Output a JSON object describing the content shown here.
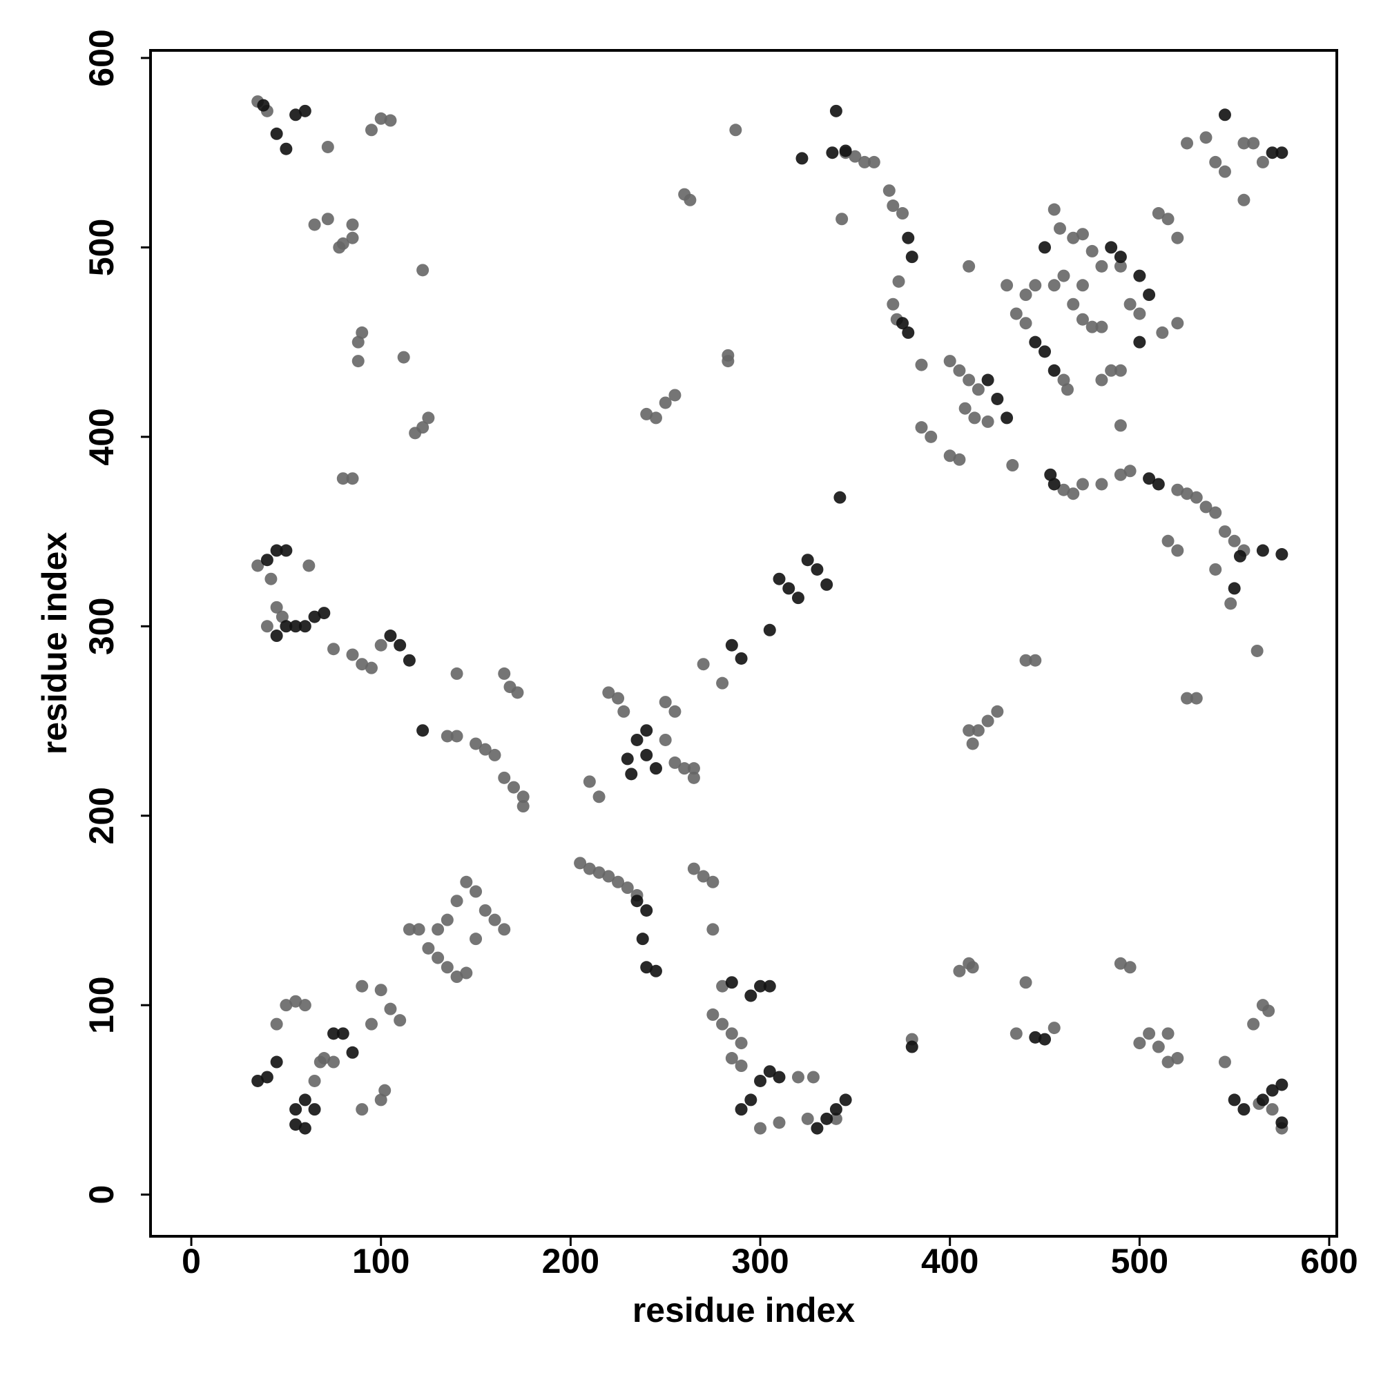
{
  "chart_data": {
    "type": "scatter",
    "xlabel": "residue index",
    "ylabel": "residue index",
    "xlim": [
      -21.5,
      604
    ],
    "ylim": [
      -22,
      604
    ],
    "xticks": [
      0,
      100,
      200,
      300,
      400,
      500,
      600
    ],
    "yticks": [
      0,
      100,
      200,
      300,
      400,
      500,
      600
    ],
    "grid": false,
    "series": [
      {
        "color": "#666666",
        "x": [
          35,
          40,
          95,
          100,
          105,
          72,
          65,
          72,
          85,
          80,
          78,
          85,
          122,
          88,
          90,
          88,
          112,
          118,
          122,
          125,
          80,
          85,
          263,
          260,
          287,
          283,
          283,
          240,
          245,
          250,
          255,
          355,
          360,
          370,
          375,
          368,
          343,
          345,
          350,
          373,
          370,
          372,
          385,
          385,
          390,
          400,
          405,
          400,
          405,
          410,
          415,
          408,
          413,
          420,
          433,
          460,
          465,
          470,
          480,
          490,
          495,
          520,
          525,
          530,
          535,
          540,
          545,
          550,
          555,
          515,
          440,
          445,
          435,
          440,
          430,
          455,
          460,
          465,
          470,
          475,
          480,
          458,
          465,
          470,
          475,
          480,
          490,
          495,
          500,
          480,
          485,
          490,
          460,
          462,
          455,
          510,
          515,
          520,
          525,
          535,
          540,
          545,
          555,
          560,
          565,
          555,
          410,
          470,
          520,
          512,
          490,
          520,
          440,
          445,
          530,
          525,
          562,
          410,
          415,
          420,
          425,
          412,
          45,
          48,
          40,
          35,
          42,
          62,
          75,
          85,
          90,
          95,
          100,
          140,
          165,
          168,
          172,
          135,
          140,
          150,
          155,
          160,
          165,
          170,
          175,
          175,
          220,
          225,
          228,
          250,
          255,
          250,
          255,
          260,
          265,
          265,
          270,
          280,
          210,
          215,
          205,
          210,
          215,
          220,
          225,
          230,
          235,
          265,
          270,
          275,
          275,
          145,
          150,
          155,
          160,
          165,
          140,
          135,
          130,
          120,
          115,
          125,
          130,
          135,
          140,
          145,
          150,
          90,
          100,
          95,
          105,
          110,
          45,
          50,
          55,
          60,
          70,
          75,
          65,
          68,
          90,
          100,
          102,
          275,
          280,
          285,
          290,
          285,
          290,
          300,
          310,
          325,
          340,
          280,
          405,
          410,
          412,
          440,
          435,
          455,
          490,
          495,
          500,
          505,
          510,
          515,
          520,
          515,
          545,
          560,
          565,
          568,
          563,
          570,
          575,
          380,
          540,
          548,
          320,
          328
        ],
        "values": [
          577,
          572,
          562,
          568,
          567,
          553,
          512,
          515,
          512,
          502,
          500,
          505,
          488,
          450,
          455,
          440,
          442,
          402,
          405,
          410,
          378,
          378,
          525,
          528,
          562,
          443,
          440,
          412,
          410,
          418,
          422,
          545,
          545,
          522,
          518,
          530,
          515,
          550,
          548,
          482,
          470,
          462,
          438,
          405,
          400,
          390,
          388,
          440,
          435,
          430,
          425,
          415,
          410,
          408,
          385,
          372,
          370,
          375,
          375,
          380,
          382,
          372,
          370,
          368,
          363,
          360,
          350,
          345,
          340,
          345,
          475,
          480,
          465,
          460,
          480,
          480,
          485,
          470,
          462,
          458,
          458,
          510,
          505,
          507,
          498,
          490,
          490,
          470,
          465,
          430,
          435,
          435,
          430,
          425,
          520,
          518,
          515,
          505,
          555,
          558,
          545,
          540,
          555,
          555,
          545,
          525,
          490,
          480,
          460,
          455,
          406,
          340,
          282,
          282,
          262,
          262,
          287,
          245,
          245,
          250,
          255,
          238,
          310,
          305,
          300,
          332,
          325,
          332,
          288,
          285,
          280,
          278,
          290,
          275,
          275,
          268,
          265,
          242,
          242,
          238,
          235,
          232,
          220,
          215,
          210,
          205,
          265,
          262,
          255,
          260,
          255,
          240,
          228,
          225,
          225,
          220,
          280,
          270,
          218,
          210,
          175,
          172,
          170,
          168,
          165,
          162,
          158,
          172,
          168,
          165,
          140,
          165,
          160,
          150,
          145,
          140,
          155,
          145,
          140,
          140,
          140,
          130,
          125,
          120,
          115,
          117,
          135,
          110,
          108,
          90,
          98,
          92,
          90,
          100,
          102,
          100,
          72,
          70,
          60,
          70,
          45,
          50,
          55,
          95,
          90,
          85,
          80,
          72,
          68,
          35,
          38,
          40,
          40,
          110,
          118,
          122,
          120,
          112,
          85,
          88,
          122,
          120,
          80,
          85,
          78,
          70,
          72,
          85,
          70,
          90,
          100,
          97,
          48,
          45,
          35,
          82,
          330,
          312,
          62,
          62
        ]
      },
      {
        "color": "#111111",
        "x": [
          38,
          45,
          50,
          55,
          60,
          338,
          340,
          345,
          322,
          378,
          380,
          378,
          375,
          485,
          490,
          500,
          505,
          450,
          445,
          450,
          455,
          500,
          420,
          425,
          430,
          453,
          455,
          505,
          510,
          570,
          575,
          545,
          565,
          575,
          553,
          550,
          40,
          45,
          50,
          45,
          50,
          55,
          65,
          70,
          60,
          110,
          115,
          105,
          122,
          285,
          290,
          305,
          310,
          315,
          320,
          325,
          330,
          335,
          342,
          230,
          235,
          240,
          240,
          245,
          232,
          300,
          295,
          305,
          285,
          290,
          295,
          300,
          305,
          310,
          335,
          340,
          345,
          330,
          55,
          60,
          55,
          60,
          65,
          45,
          40,
          35,
          75,
          80,
          85,
          240,
          245,
          238,
          235,
          240,
          550,
          555,
          565,
          570,
          575,
          450,
          445,
          575,
          380
        ],
        "values": [
          575,
          560,
          552,
          570,
          572,
          550,
          572,
          551,
          547,
          505,
          495,
          455,
          460,
          500,
          495,
          485,
          475,
          500,
          450,
          445,
          435,
          450,
          430,
          420,
          410,
          380,
          375,
          378,
          375,
          550,
          550,
          570,
          340,
          338,
          337,
          320,
          335,
          340,
          340,
          295,
          300,
          300,
          305,
          307,
          300,
          290,
          282,
          295,
          245,
          290,
          283,
          298,
          325,
          320,
          315,
          335,
          330,
          322,
          368,
          230,
          240,
          245,
          232,
          225,
          222,
          110,
          105,
          110,
          112,
          45,
          50,
          60,
          65,
          62,
          40,
          45,
          50,
          35,
          45,
          50,
          37,
          35,
          45,
          70,
          62,
          60,
          85,
          85,
          75,
          120,
          118,
          135,
          155,
          150,
          50,
          45,
          50,
          55,
          58,
          82,
          83,
          38,
          78
        ]
      }
    ]
  }
}
